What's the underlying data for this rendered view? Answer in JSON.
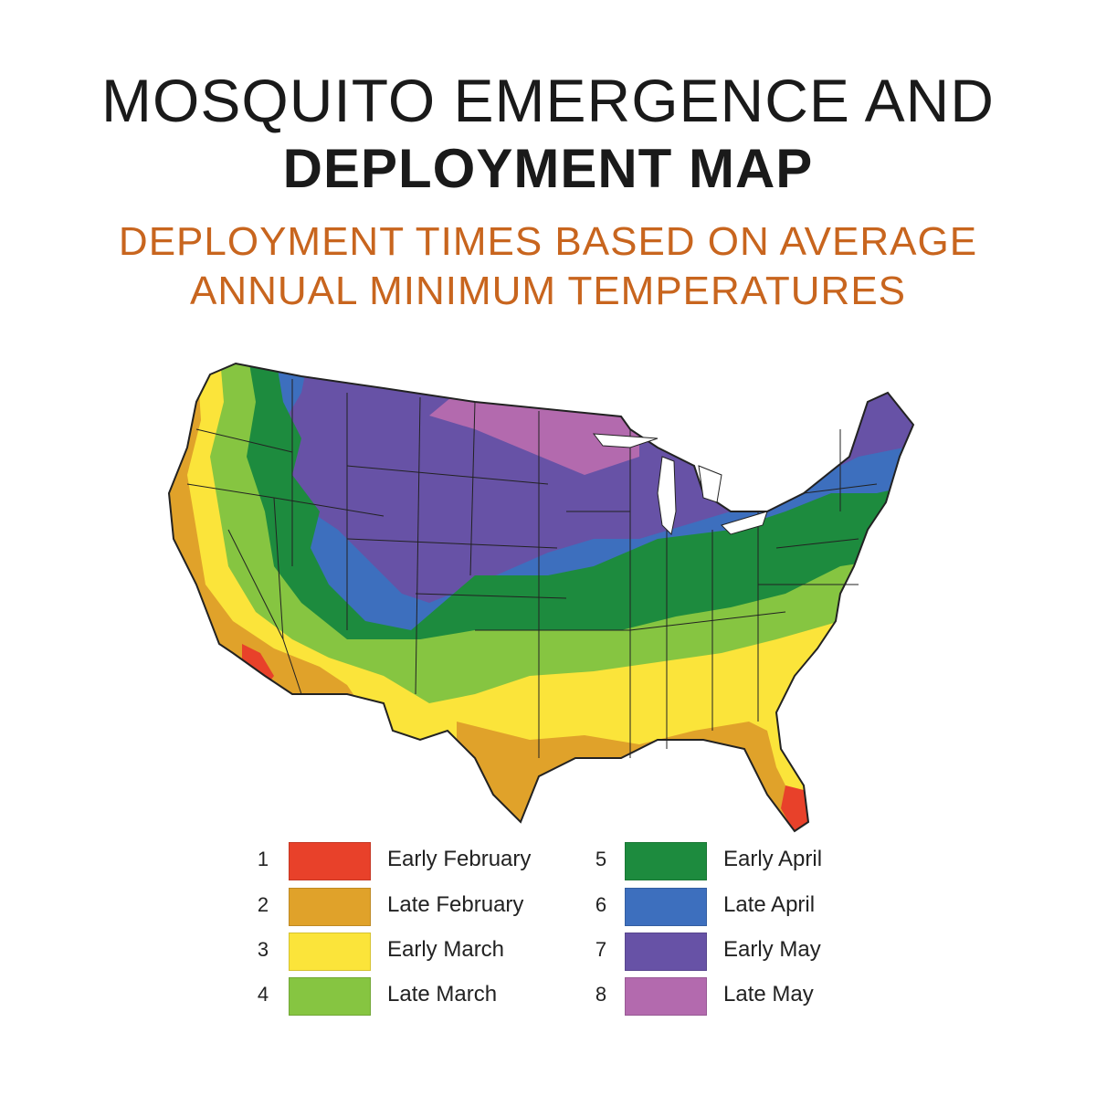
{
  "title": {
    "line1": "MOSQUITO EMERGENCE AND",
    "line2": "DEPLOYMENT MAP"
  },
  "subtitle": {
    "line1": "DEPLOYMENT TIMES BASED ON AVERAGE",
    "line2": "ANNUAL MINIMUM TEMPERATURES"
  },
  "legend": [
    {
      "number": "1",
      "label": "Early February",
      "color": "#e8412a"
    },
    {
      "number": "2",
      "label": "Late February",
      "color": "#e0a22a"
    },
    {
      "number": "3",
      "label": "Early March",
      "color": "#fbe43a"
    },
    {
      "number": "4",
      "label": "Late March",
      "color": "#86c541"
    },
    {
      "number": "5",
      "label": "Early April",
      "color": "#1d8b3e"
    },
    {
      "number": "6",
      "label": "Late April",
      "color": "#3d6fbe"
    },
    {
      "number": "7",
      "label": "Early May",
      "color": "#6752a6"
    },
    {
      "number": "8",
      "label": "Late May",
      "color": "#b36aae"
    }
  ],
  "map": {
    "region": "Contiguous United States",
    "water_color": "#ffffff",
    "border_color": "#222222"
  }
}
